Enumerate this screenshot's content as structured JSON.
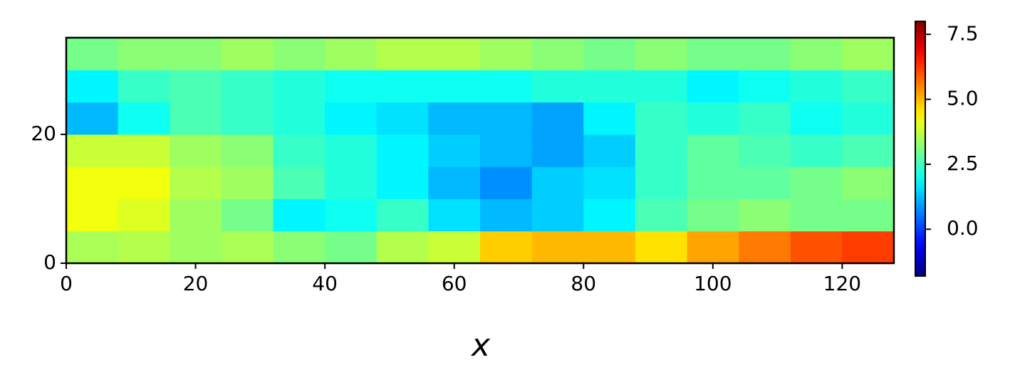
{
  "chart_data": {
    "type": "heatmap",
    "colormap": "jet",
    "xbins": [
      0,
      8,
      16,
      24,
      32,
      40,
      48,
      56,
      64,
      72,
      80,
      88,
      96,
      104,
      112,
      120,
      128
    ],
    "ybins": [
      0,
      5,
      10,
      15,
      20,
      25,
      30,
      35
    ],
    "values": [
      [
        3.5,
        3.6,
        3.4,
        3.5,
        3.2,
        3.0,
        3.6,
        3.8,
        4.8,
        5.0,
        5.0,
        4.6,
        5.2,
        5.6,
        6.0,
        6.2
      ],
      [
        4.2,
        4.0,
        3.4,
        3.0,
        1.8,
        2.0,
        2.4,
        1.6,
        1.2,
        1.4,
        1.8,
        2.6,
        3.0,
        3.2,
        3.0,
        3.0
      ],
      [
        4.2,
        4.2,
        3.6,
        3.4,
        2.6,
        2.2,
        1.8,
        1.2,
        0.8,
        1.4,
        1.6,
        2.4,
        2.8,
        2.8,
        3.0,
        3.2
      ],
      [
        3.8,
        3.8,
        3.4,
        3.2,
        2.4,
        2.2,
        1.8,
        1.4,
        1.2,
        1.0,
        1.4,
        2.4,
        2.8,
        2.6,
        2.4,
        2.6
      ],
      [
        1.2,
        2.0,
        2.6,
        2.4,
        2.2,
        1.8,
        1.6,
        1.2,
        1.2,
        1.0,
        1.8,
        2.4,
        2.2,
        2.4,
        2.0,
        2.2
      ],
      [
        1.8,
        2.4,
        2.6,
        2.4,
        2.2,
        2.0,
        2.0,
        2.0,
        2.0,
        2.2,
        2.2,
        2.2,
        1.8,
        2.0,
        2.2,
        2.4
      ],
      [
        3.0,
        3.2,
        3.2,
        3.4,
        3.2,
        3.4,
        3.6,
        3.6,
        3.4,
        3.2,
        3.0,
        3.2,
        3.0,
        3.0,
        3.2,
        3.4
      ]
    ],
    "xlim": [
      0,
      128
    ],
    "ylim": [
      0,
      35
    ],
    "xticks": [
      0,
      20,
      40,
      60,
      80,
      100,
      120
    ],
    "yticks": [
      0,
      20
    ],
    "xlabel": "x",
    "colorbar": {
      "lim": [
        -1.8,
        8.0
      ],
      "ticks": [
        {
          "value": 0,
          "label": "0.0"
        },
        {
          "value": 2.5,
          "label": "2.5"
        },
        {
          "value": 5,
          "label": "5.0"
        },
        {
          "value": 7.5,
          "label": "7.5"
        }
      ]
    }
  }
}
